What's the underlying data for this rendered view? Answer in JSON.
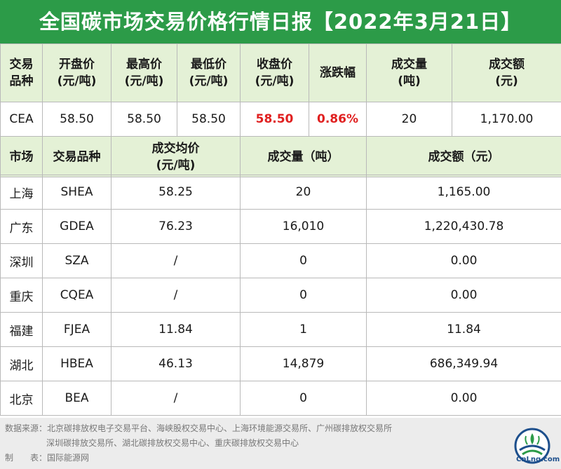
{
  "title": "全国碳市场交易价格行情日报【2022年3月21日】",
  "national": {
    "headers": [
      [
        "交易",
        "品种"
      ],
      [
        "开盘价",
        "(元/吨)"
      ],
      [
        "最高价",
        "(元/吨)"
      ],
      [
        "最低价",
        "(元/吨)"
      ],
      [
        "收盘价",
        "(元/吨)"
      ],
      [
        "涨跌幅"
      ],
      [
        "成交量",
        "(吨)"
      ],
      [
        "成交额",
        "(元)"
      ]
    ],
    "row": {
      "product": "CEA",
      "open": "58.50",
      "high": "58.50",
      "low": "58.50",
      "close": "58.50",
      "change": "0.86%",
      "volume": "20",
      "amount": "1,170.00"
    }
  },
  "regional": {
    "headers": {
      "market": "市场",
      "product": "交易品种",
      "avg_price": [
        "成交均价",
        "(元/吨)"
      ],
      "volume": "成交量（吨）",
      "amount": "成交额（元）"
    },
    "rows": [
      {
        "market": "上海",
        "product": "SHEA",
        "avg_price": "58.25",
        "volume": "20",
        "amount": "1,165.00"
      },
      {
        "market": "广东",
        "product": "GDEA",
        "avg_price": "76.23",
        "volume": "16,010",
        "amount": "1,220,430.78"
      },
      {
        "market": "深圳",
        "product": "SZA",
        "avg_price": "/",
        "volume": "0",
        "amount": "0.00"
      },
      {
        "market": "重庆",
        "product": "CQEA",
        "avg_price": "/",
        "volume": "0",
        "amount": "0.00"
      },
      {
        "market": "福建",
        "product": "FJEA",
        "avg_price": "11.84",
        "volume": "1",
        "amount": "11.84"
      },
      {
        "market": "湖北",
        "product": "HBEA",
        "avg_price": "46.13",
        "volume": "14,879",
        "amount": "686,349.94"
      },
      {
        "market": "北京",
        "product": "BEA",
        "avg_price": "/",
        "volume": "0",
        "amount": "0.00"
      }
    ]
  },
  "footer": {
    "source_line1": "数据来源：北京碳排放权电子交易平台、海峡股权交易中心、上海环境能源交易所、广州碳排放权交易所",
    "source_line2": "深圳碳排放交易所、湖北碳排放权交易中心、重庆碳排放权交易中心",
    "maker": "制　　表：国际能源网",
    "logo_text": "CnLng.com"
  },
  "colors": {
    "title_bg": "#2c9b48",
    "header_bg": "#e4f1d6",
    "highlight": "#e02020"
  }
}
